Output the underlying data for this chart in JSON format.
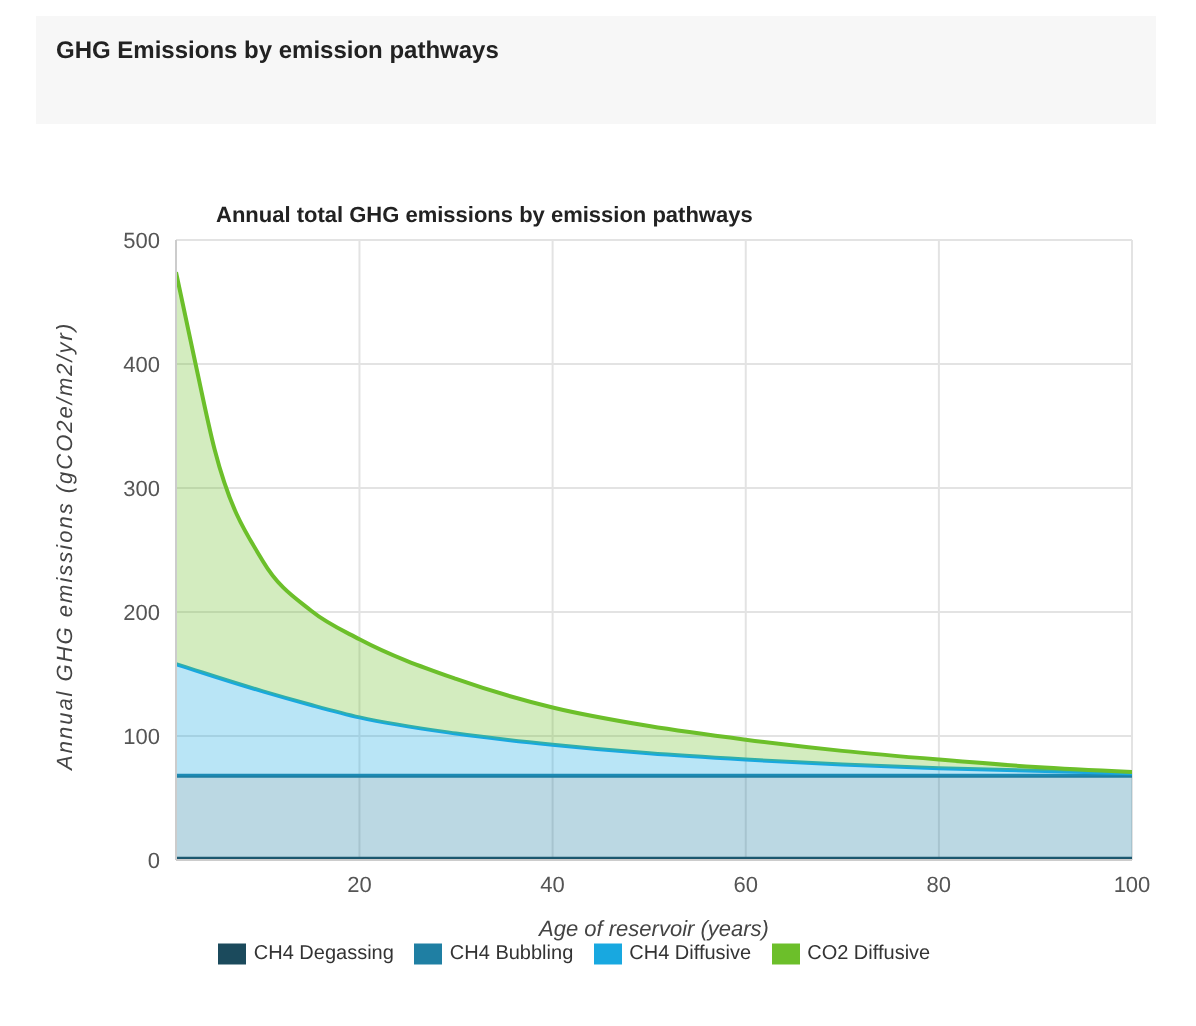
{
  "chart_data": {
    "type": "area",
    "title": "GHG Emissions by emission pathways",
    "subtitle": "Annual total GHG emissions by emission pathways",
    "xlabel": "Age of reservoir (years)",
    "ylabel": "Annual GHG emissions (gCO2e/m2/yr)",
    "stacked": true,
    "x": [
      1,
      3,
      5,
      10,
      15,
      20,
      30,
      40,
      50,
      60,
      70,
      80,
      90,
      100
    ],
    "series": [
      {
        "name": "CH4 Degassing",
        "color": "#1b4a5c",
        "values": [
          1,
          1,
          1,
          1,
          1,
          1,
          1,
          1,
          1,
          1,
          1,
          1,
          1,
          1
        ]
      },
      {
        "name": "CH4 Bubbling",
        "color": "#1f7fa3",
        "values": [
          67,
          67,
          67,
          67,
          67,
          67,
          67,
          67,
          67,
          67,
          67,
          67,
          67,
          67
        ]
      },
      {
        "name": "CH4 Diffusive",
        "color": "#18a8e0",
        "values": [
          90,
          85,
          80,
          68,
          57,
          47,
          34,
          25,
          18,
          13,
          9,
          6,
          4,
          2
        ]
      },
      {
        "name": "CO2 Diffusive",
        "color": "#6cbf2a",
        "values": [
          316,
          248,
          183,
          105,
          76,
          63,
          44,
          30,
          22,
          16,
          11,
          7,
          3,
          1
        ]
      }
    ],
    "xlim": [
      1,
      100
    ],
    "xticks": [
      20,
      40,
      60,
      80,
      100
    ],
    "ylim": [
      0,
      500
    ],
    "yticks": [
      0,
      100,
      200,
      300,
      400,
      500
    ],
    "grid": true,
    "legend": "bottom"
  }
}
